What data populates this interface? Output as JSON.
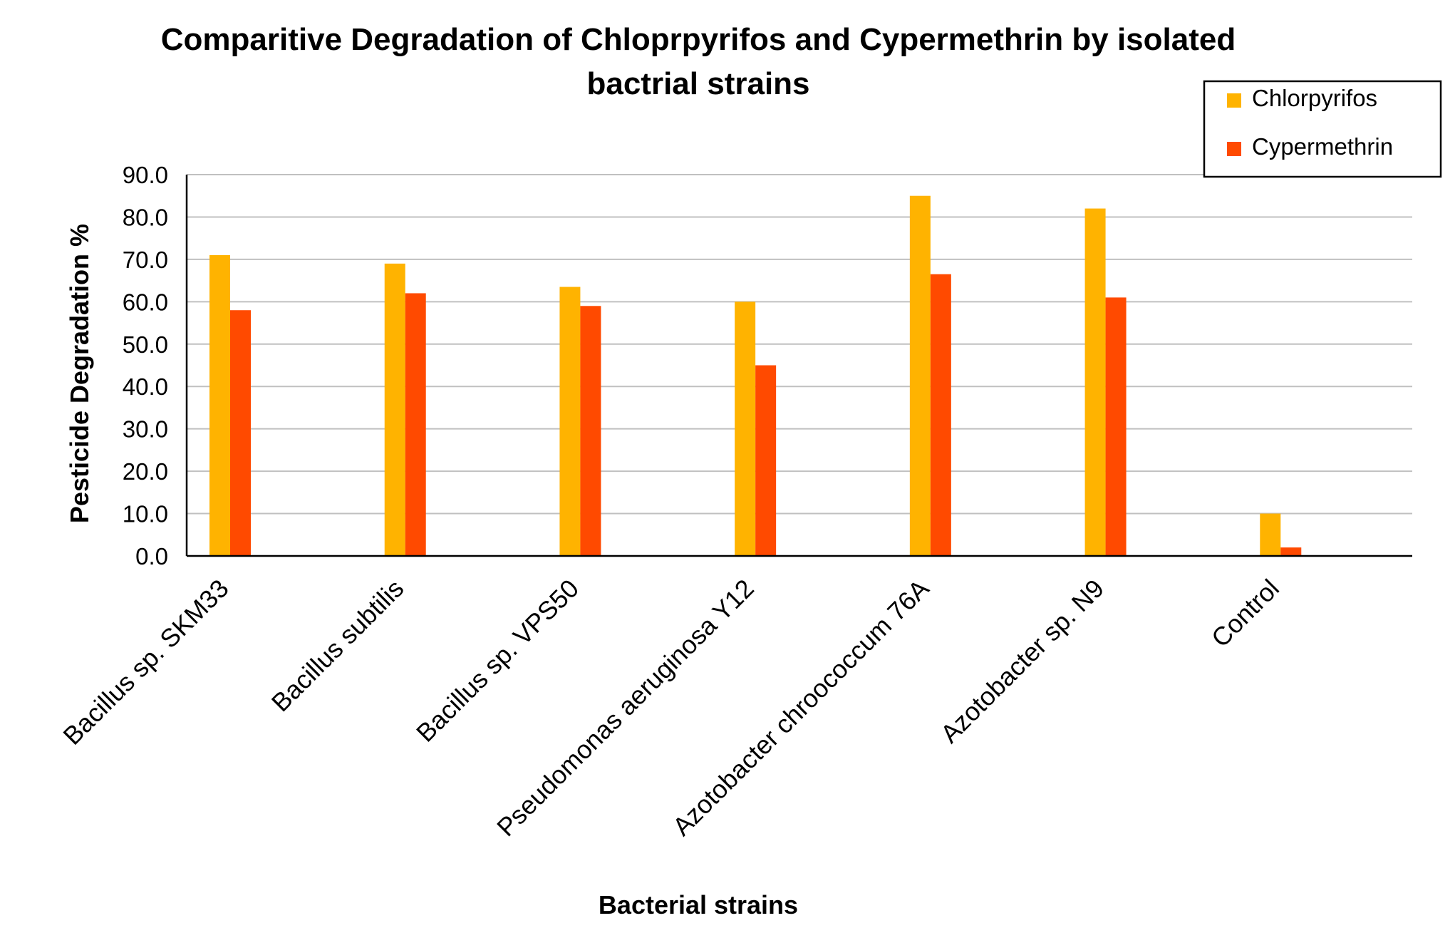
{
  "chart_data": {
    "type": "bar",
    "title_lines": [
      "Comparitive Degradation of Chloprpyrifos and Cypermethrin by isolated",
      "bactrial strains"
    ],
    "xlabel": "Bacterial strains",
    "ylabel": "Pesticide Degradation %",
    "categories": [
      "Bacillus sp. SKM33",
      "Bacillus subtilis",
      "Bacillus sp. VPS50",
      "Pseudomonas aeruginosa Y12",
      "Azotobacter chroococcum 76A",
      "Azotobacter sp. N9",
      "Control"
    ],
    "series": [
      {
        "name": "Chlorpyrifos",
        "color": "#FFB300",
        "values": [
          71.0,
          69.0,
          63.5,
          60.0,
          85.0,
          82.0,
          10.0
        ]
      },
      {
        "name": "Cypermethrin",
        "color": "#FF4A00",
        "values": [
          58.0,
          62.0,
          59.0,
          45.0,
          66.5,
          61.0,
          2.0
        ]
      }
    ],
    "yticks": [
      "0.0",
      "10.0",
      "20.0",
      "30.0",
      "40.0",
      "50.0",
      "60.0",
      "70.0",
      "80.0",
      "90.0"
    ],
    "ylim": [
      0,
      90
    ],
    "grid": true,
    "legend_position": "top-right"
  }
}
